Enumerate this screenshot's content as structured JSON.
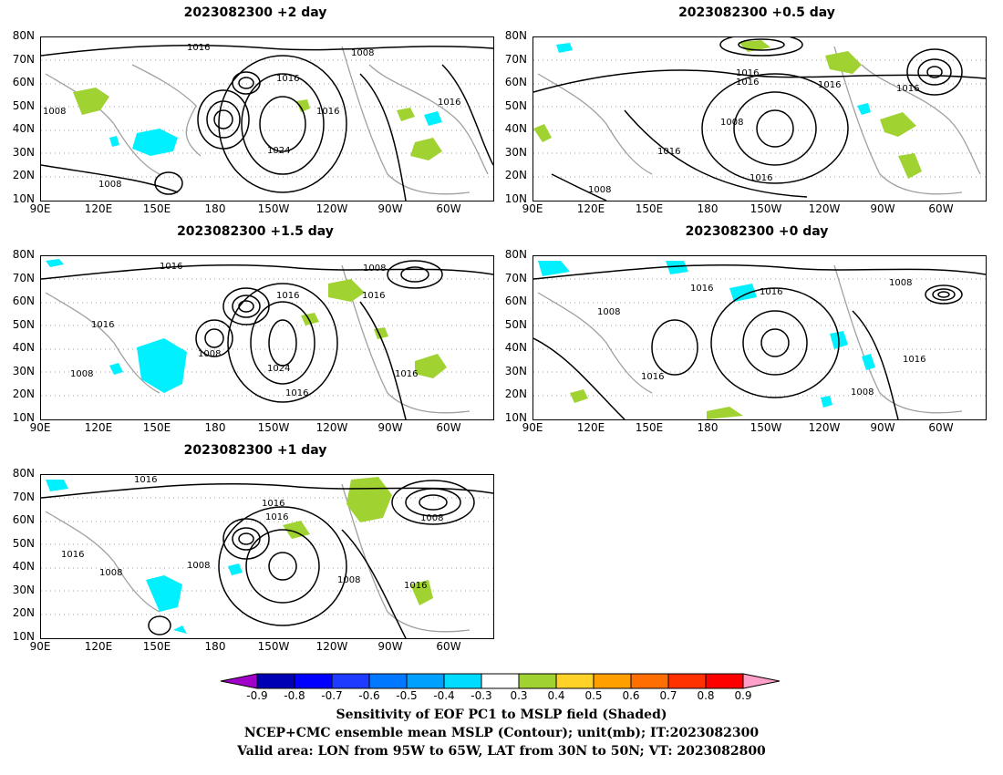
{
  "panels": [
    {
      "title": "2023082300 +2 day",
      "contour_labels": [
        "1016",
        "1008",
        "1016",
        "1008",
        "1016",
        "1024",
        "1016",
        "1008"
      ]
    },
    {
      "title": "2023082300 +0.5 day",
      "contour_labels": [
        "1016",
        "1016",
        "1016",
        "1016",
        "1008",
        "1016",
        "1016",
        "1008"
      ]
    },
    {
      "title": "2023082300 +1.5 day",
      "contour_labels": [
        "1016",
        "1008",
        "1016",
        "1016",
        "1016",
        "1008",
        "1024",
        "1008",
        "1016",
        "1016"
      ]
    },
    {
      "title": "2023082300 +0 day",
      "contour_labels": [
        "1008",
        "1016",
        "1016",
        "1008",
        "1016",
        "1016",
        "1008"
      ]
    },
    {
      "title": "2023082300 +1 day",
      "contour_labels": [
        "1016",
        "1016",
        "1016",
        "1008",
        "1016",
        "1008",
        "1008",
        "1016",
        "1008"
      ]
    }
  ],
  "axes": {
    "lat_ticks": [
      "80N",
      "70N",
      "60N",
      "50N",
      "40N",
      "30N",
      "20N",
      "10N"
    ],
    "lon_ticks": [
      "90E",
      "120E",
      "150E",
      "180",
      "150W",
      "120W",
      "90W",
      "60W"
    ]
  },
  "colorbar": {
    "labels": [
      "-0.9",
      "-0.8",
      "-0.7",
      "-0.6",
      "-0.5",
      "-0.4",
      "-0.3",
      "0.3",
      "0.4",
      "0.5",
      "0.6",
      "0.7",
      "0.8",
      "0.9"
    ],
    "colors": [
      "#a000c8",
      "#0000b4",
      "#0000ff",
      "#1e3cff",
      "#0078ff",
      "#00a0ff",
      "#00dcff",
      "#ffffff",
      "#a0d232",
      "#ffd228",
      "#ffa000",
      "#ff6e00",
      "#ff3200",
      "#ff0000",
      "#ffa0c8"
    ]
  },
  "footer": {
    "line1": "Sensitivity of EOF PC1 to MSLP field (Shaded)",
    "line2": "NCEP+CMC ensemble mean MSLP (Contour); unit(mb); IT:2023082300",
    "line3": "Valid area: LON from 95W to 65W, LAT from 30N to 50N; VT: 2023082800"
  },
  "colors": {
    "contour": "#000000",
    "coast": "#a0a0a0",
    "grid": "#a0a0a0"
  }
}
